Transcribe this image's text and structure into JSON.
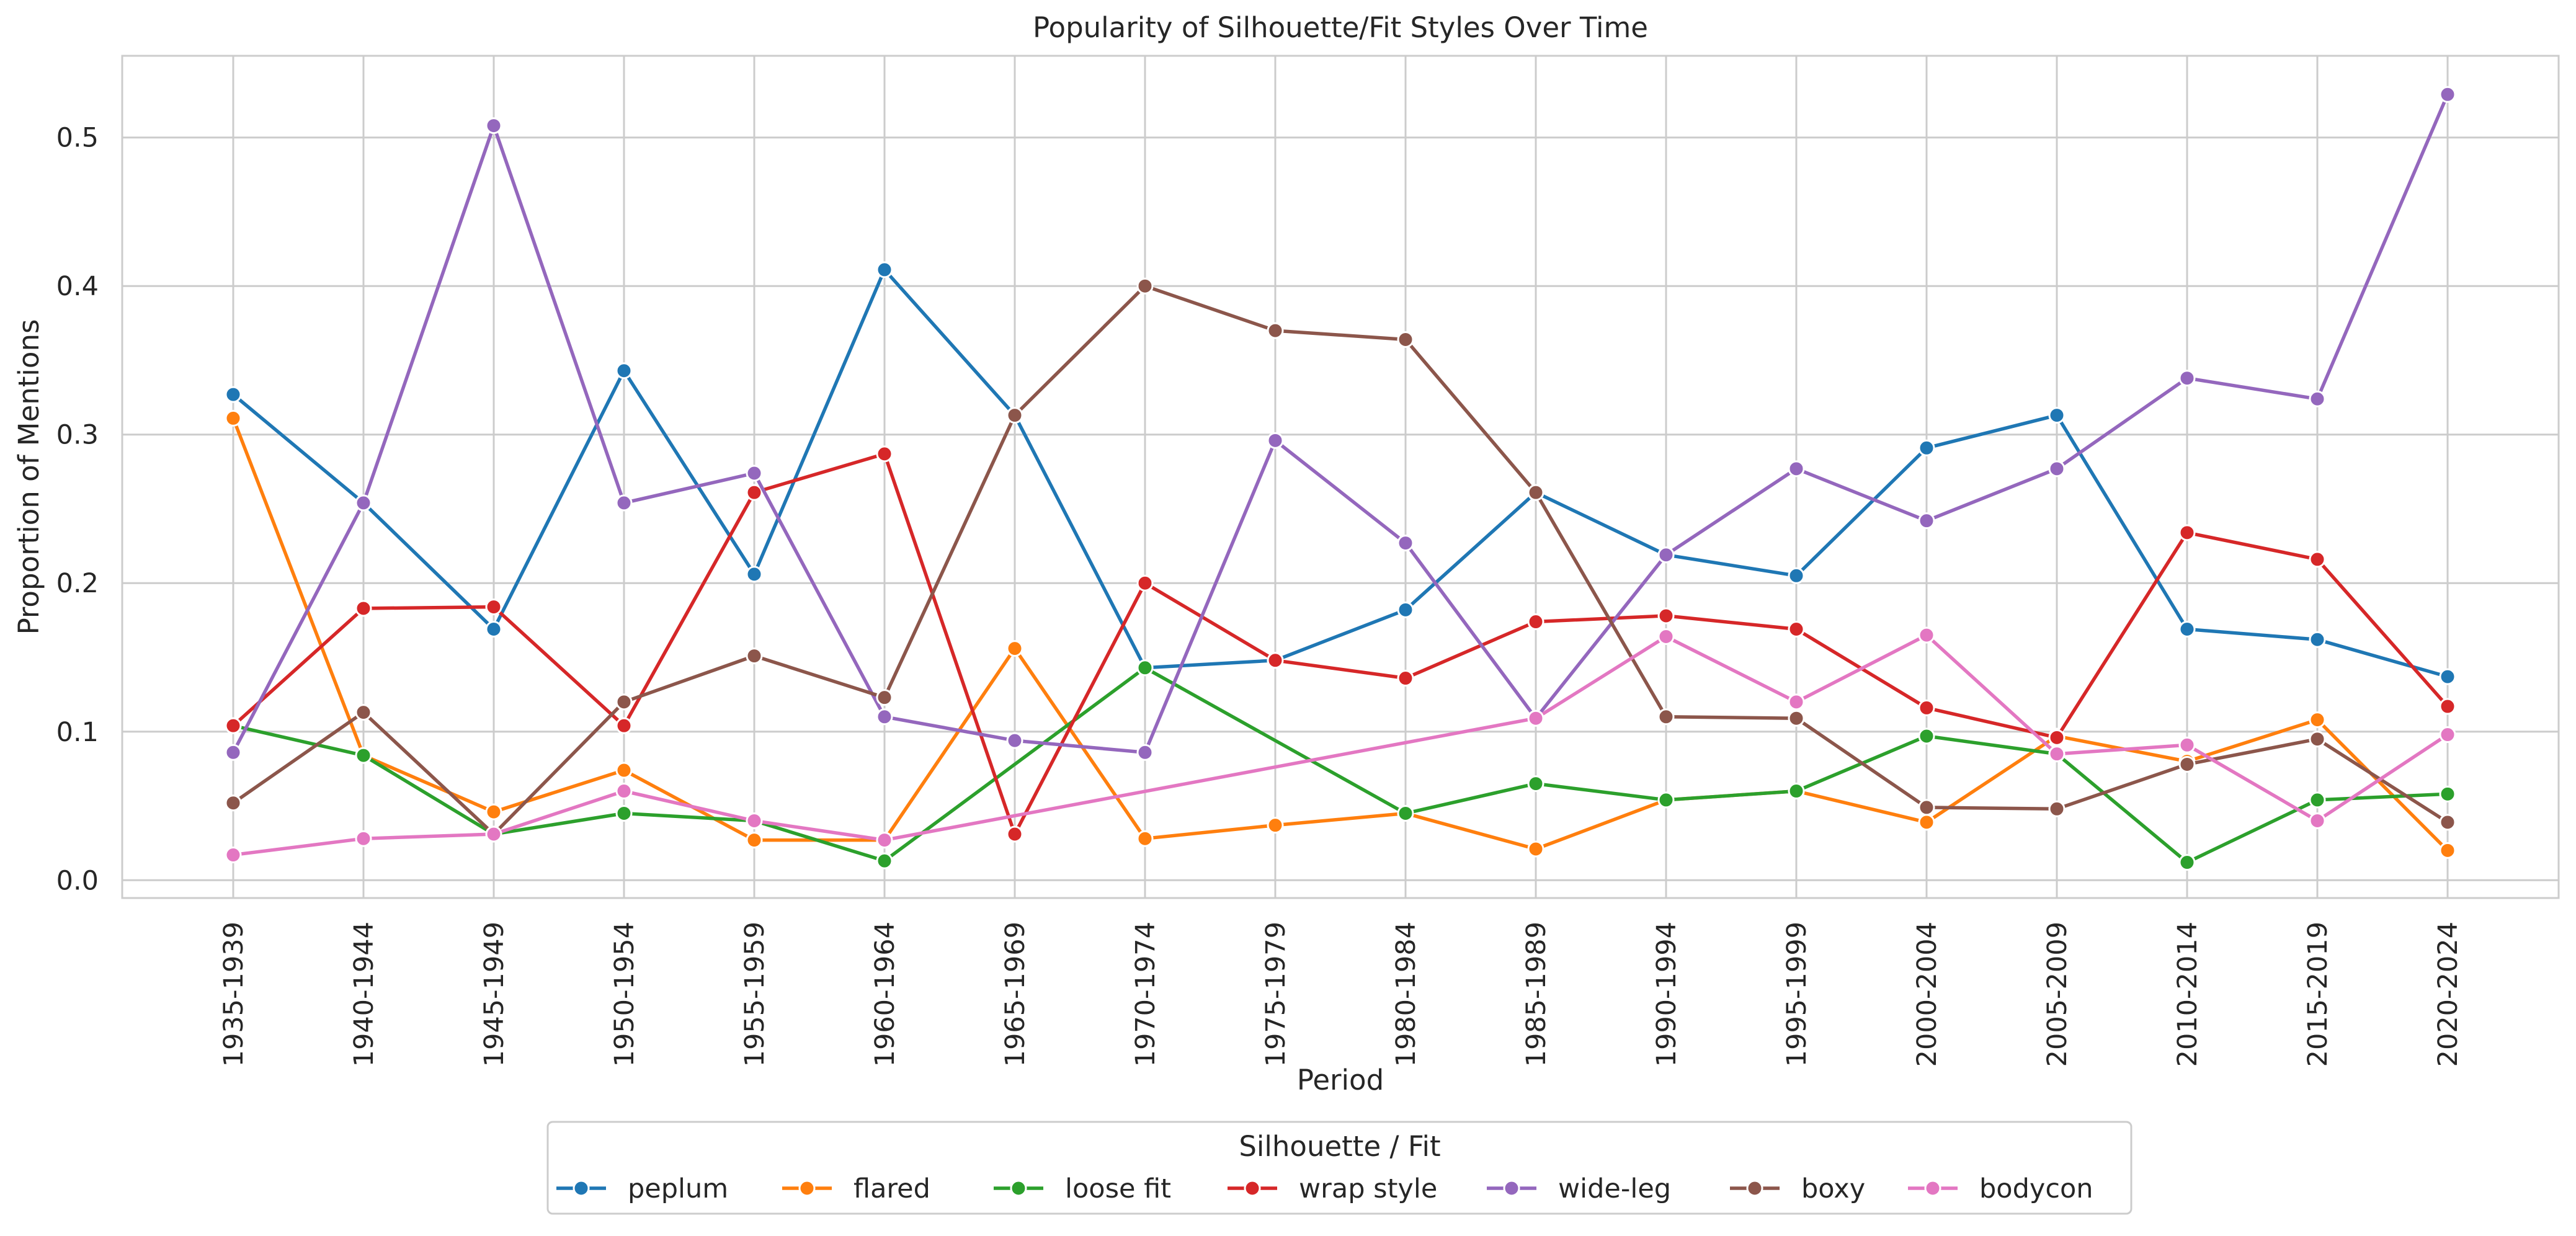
{
  "chart_data": {
    "type": "line",
    "title": "Popularity of Silhouette/Fit Styles Over Time",
    "xlabel": "Period",
    "ylabel": "Proportion of Mentions",
    "ylim": [
      -0.012,
      0.555
    ],
    "yticks": [
      0.0,
      0.1,
      0.2,
      0.3,
      0.4,
      0.5
    ],
    "ytick_labels": [
      "0.0",
      "0.1",
      "0.2",
      "0.3",
      "0.4",
      "0.5"
    ],
    "grid": true,
    "legend": {
      "title": "Silhouette / Fit",
      "placement": "bottom-center"
    },
    "categories": [
      "1935-1939",
      "1940-1944",
      "1945-1949",
      "1950-1954",
      "1955-1959",
      "1960-1964",
      "1965-1969",
      "1970-1974",
      "1975-1979",
      "1980-1984",
      "1985-1989",
      "1990-1994",
      "1995-1999",
      "2000-2004",
      "2005-2009",
      "2010-2014",
      "2015-2019",
      "2020-2024"
    ],
    "series": [
      {
        "name": "peplum",
        "color": "#1f77b4",
        "values": [
          0.327,
          0.254,
          0.169,
          0.343,
          0.206,
          0.411,
          0.313,
          0.143,
          0.148,
          0.182,
          0.261,
          0.219,
          0.205,
          0.291,
          0.313,
          0.169,
          0.162,
          0.137
        ]
      },
      {
        "name": "flared",
        "color": "#ff7f0e",
        "values": [
          0.311,
          0.084,
          0.046,
          0.074,
          0.027,
          0.027,
          0.156,
          0.028,
          0.037,
          0.045,
          0.021,
          0.054,
          0.06,
          0.039,
          0.097,
          0.08,
          0.108,
          0.02
        ]
      },
      {
        "name": "loose fit",
        "color": "#2ca02c",
        "values": [
          0.104,
          0.084,
          0.031,
          0.045,
          0.04,
          0.013,
          null,
          0.143,
          null,
          0.045,
          0.065,
          0.054,
          0.06,
          0.097,
          0.085,
          0.012,
          0.054,
          0.058
        ]
      },
      {
        "name": "wrap style",
        "color": "#d62728",
        "values": [
          0.104,
          0.183,
          0.184,
          0.104,
          0.261,
          0.287,
          0.031,
          0.2,
          0.148,
          0.136,
          0.174,
          0.178,
          0.169,
          0.116,
          0.096,
          0.234,
          0.216,
          0.117
        ]
      },
      {
        "name": "wide-leg",
        "color": "#9467bd",
        "values": [
          0.086,
          0.254,
          0.508,
          0.254,
          0.274,
          0.11,
          0.094,
          0.086,
          0.296,
          0.227,
          0.109,
          0.219,
          0.277,
          0.242,
          0.277,
          0.338,
          0.324,
          0.529
        ]
      },
      {
        "name": "boxy",
        "color": "#8c564b",
        "values": [
          0.052,
          0.113,
          0.031,
          0.12,
          0.151,
          0.123,
          0.313,
          0.4,
          0.37,
          0.364,
          0.261,
          0.11,
          0.109,
          0.049,
          0.048,
          0.078,
          0.095,
          0.039
        ]
      },
      {
        "name": "bodycon",
        "color": "#e377c2",
        "values": [
          0.017,
          0.028,
          0.031,
          0.06,
          0.04,
          0.027,
          null,
          null,
          null,
          null,
          0.109,
          0.164,
          0.12,
          0.165,
          0.085,
          0.091,
          0.04,
          0.098
        ]
      }
    ]
  }
}
